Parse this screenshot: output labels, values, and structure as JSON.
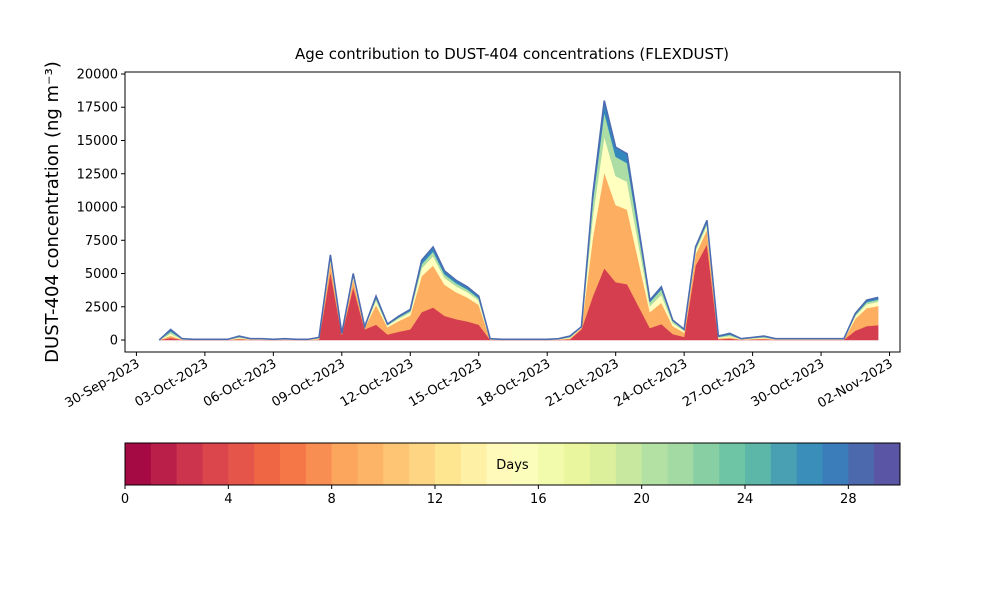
{
  "chart_data": {
    "type": "stacked_area",
    "title": "Age contribution to DUST-404 concentrations (FLEXDUST)",
    "y_label": "DUST-404 concentration (ng m⁻³)",
    "x": [
      "2023-10-01 00:00",
      "2023-10-01 12:00",
      "2023-10-02 00:00",
      "2023-10-02 12:00",
      "2023-10-03 00:00",
      "2023-10-03 12:00",
      "2023-10-04 00:00",
      "2023-10-04 12:00",
      "2023-10-05 00:00",
      "2023-10-05 12:00",
      "2023-10-06 00:00",
      "2023-10-06 12:00",
      "2023-10-07 00:00",
      "2023-10-07 12:00",
      "2023-10-08 00:00",
      "2023-10-08 12:00",
      "2023-10-09 00:00",
      "2023-10-09 12:00",
      "2023-10-10 00:00",
      "2023-10-10 12:00",
      "2023-10-11 00:00",
      "2023-10-11 12:00",
      "2023-10-12 00:00",
      "2023-10-12 12:00",
      "2023-10-13 00:00",
      "2023-10-13 12:00",
      "2023-10-14 00:00",
      "2023-10-14 12:00",
      "2023-10-15 00:00",
      "2023-10-15 12:00",
      "2023-10-16 00:00",
      "2023-10-16 12:00",
      "2023-10-17 00:00",
      "2023-10-17 12:00",
      "2023-10-18 00:00",
      "2023-10-18 12:00",
      "2023-10-19 00:00",
      "2023-10-19 12:00",
      "2023-10-20 00:00",
      "2023-10-20 12:00",
      "2023-10-21 00:00",
      "2023-10-21 12:00",
      "2023-10-22 00:00",
      "2023-10-22 12:00",
      "2023-10-23 00:00",
      "2023-10-23 12:00",
      "2023-10-24 00:00",
      "2023-10-24 12:00",
      "2023-10-25 00:00",
      "2023-10-25 12:00",
      "2023-10-26 00:00",
      "2023-10-26 12:00",
      "2023-10-27 00:00",
      "2023-10-27 12:00",
      "2023-10-28 00:00",
      "2023-10-28 12:00",
      "2023-10-29 00:00",
      "2023-10-29 12:00",
      "2023-10-30 00:00",
      "2023-10-30 12:00",
      "2023-10-31 00:00",
      "2023-10-31 12:00",
      "2023-11-01 00:00",
      "2023-11-01 12:00"
    ],
    "series": [
      {
        "color": "#d53e4f",
        "values": [
          0,
          160,
          20,
          10,
          10,
          10,
          10,
          60,
          20,
          20,
          10,
          20,
          10,
          10,
          40,
          5120,
          400,
          4000,
          800,
          1155,
          420,
          630,
          805,
          2100,
          2450,
          1820,
          1575,
          1400,
          1155,
          20,
          10,
          10,
          10,
          10,
          10,
          20,
          60,
          800,
          3300,
          5400,
          4350,
          4200,
          2550,
          900,
          1200,
          450,
          240,
          5600,
          7200,
          60,
          100,
          20,
          40,
          60,
          20,
          20,
          20,
          20,
          20,
          20,
          20,
          700,
          1050,
          1120
        ]
      },
      {
        "color": "#fdae61",
        "values": [
          0,
          160,
          20,
          10,
          10,
          10,
          10,
          60,
          20,
          20,
          10,
          20,
          10,
          10,
          40,
          768,
          60,
          600,
          120,
          1485,
          540,
          810,
          1035,
          2700,
          3150,
          2340,
          2025,
          1800,
          1485,
          20,
          10,
          10,
          10,
          10,
          10,
          20,
          60,
          120,
          4400,
          7200,
          5800,
          5600,
          3400,
          1200,
          1600,
          600,
          320,
          840,
          1080,
          60,
          100,
          20,
          40,
          60,
          20,
          20,
          20,
          20,
          20,
          20,
          20,
          900,
          1350,
          1440
        ]
      },
      {
        "color": "#ffffbf",
        "values": [
          0,
          160,
          20,
          10,
          10,
          10,
          10,
          60,
          20,
          20,
          10,
          20,
          10,
          10,
          40,
          256,
          20,
          200,
          40,
          330,
          120,
          180,
          230,
          600,
          700,
          520,
          450,
          400,
          330,
          20,
          10,
          10,
          10,
          10,
          10,
          20,
          60,
          40,
          1650,
          2700,
          2175,
          2100,
          1275,
          450,
          600,
          225,
          120,
          280,
          360,
          60,
          100,
          20,
          40,
          60,
          20,
          20,
          20,
          20,
          20,
          20,
          20,
          200,
          300,
          320
        ]
      },
      {
        "color": "#abdda4",
        "values": [
          0,
          160,
          20,
          10,
          10,
          10,
          10,
          60,
          20,
          20,
          10,
          20,
          10,
          10,
          40,
          128,
          10,
          100,
          20,
          165,
          60,
          90,
          115,
          300,
          350,
          260,
          225,
          200,
          165,
          20,
          10,
          10,
          10,
          10,
          10,
          20,
          60,
          20,
          1100,
          1800,
          1450,
          1400,
          850,
          300,
          400,
          150,
          80,
          140,
          180,
          60,
          100,
          20,
          40,
          60,
          20,
          20,
          20,
          20,
          20,
          20,
          20,
          100,
          150,
          160
        ]
      },
      {
        "color": "#3288bd",
        "values": [
          0,
          160,
          20,
          10,
          10,
          10,
          10,
          60,
          20,
          20,
          10,
          20,
          10,
          10,
          40,
          128,
          10,
          100,
          20,
          165,
          60,
          90,
          115,
          300,
          350,
          260,
          225,
          200,
          165,
          20,
          10,
          10,
          10,
          10,
          10,
          20,
          60,
          20,
          550,
          900,
          725,
          700,
          425,
          150,
          200,
          75,
          40,
          140,
          180,
          60,
          100,
          20,
          40,
          60,
          20,
          20,
          20,
          20,
          20,
          20,
          20,
          100,
          150,
          160
        ]
      }
    ],
    "edge_color": "#4c6bb0",
    "xlim": [
      "2023-09-29 12:00",
      "2023-11-02 11:00"
    ],
    "xticks": [
      {
        "value": "2023-09-30",
        "label": "30-Sep-2023"
      },
      {
        "value": "2023-10-03",
        "label": "03-Oct-2023"
      },
      {
        "value": "2023-10-06",
        "label": "06-Oct-2023"
      },
      {
        "value": "2023-10-09",
        "label": "09-Oct-2023"
      },
      {
        "value": "2023-10-12",
        "label": "12-Oct-2023"
      },
      {
        "value": "2023-10-15",
        "label": "15-Oct-2023"
      },
      {
        "value": "2023-10-18",
        "label": "18-Oct-2023"
      },
      {
        "value": "2023-10-21",
        "label": "21-Oct-2023"
      },
      {
        "value": "2023-10-24",
        "label": "24-Oct-2023"
      },
      {
        "value": "2023-10-27",
        "label": "27-Oct-2023"
      },
      {
        "value": "2023-10-30",
        "label": "30-Oct-2023"
      },
      {
        "value": "2023-11-02",
        "label": "02-Nov-2023"
      }
    ],
    "ylim": [
      -900,
      20150
    ],
    "yticks": [
      0,
      2500,
      5000,
      7500,
      10000,
      12500,
      15000,
      17500,
      20000
    ],
    "colorbar": {
      "label": "Days",
      "lim": [
        0,
        30
      ],
      "ticks": [
        0,
        4,
        8,
        12,
        16,
        20,
        24,
        28
      ],
      "colors": [
        "#a60a44",
        "#b91f48",
        "#cc334d",
        "#da464c",
        "#e5554a",
        "#ef6645",
        "#f57647",
        "#f98e52",
        "#fca55d",
        "#fdb466",
        "#fdc574",
        "#fed683",
        "#fee590",
        "#fef0a5",
        "#fffaba",
        "#fbfdba",
        "#f2faab",
        "#e9f69d",
        "#dcf09b",
        "#c8e89f",
        "#b3e0a3",
        "#a3daa4",
        "#88cfa4",
        "#6dc5a5",
        "#5db7a9",
        "#4aa0b3",
        "#3a8fba",
        "#3b7dba",
        "#4c69ad",
        "#5a55a5"
      ]
    }
  }
}
